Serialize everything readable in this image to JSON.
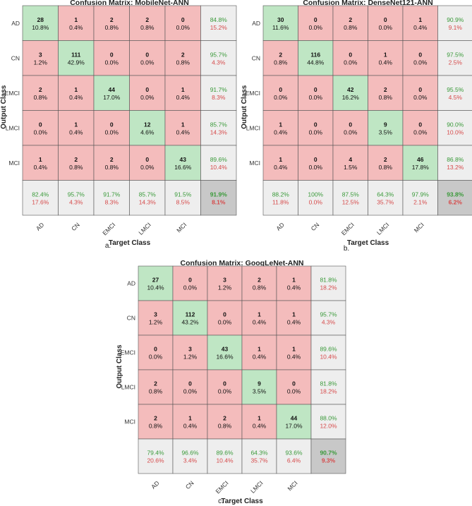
{
  "chart_data": [
    {
      "type": "heatmap",
      "title": "Confusion Matrix: MobileNet-ANN",
      "xlabel": "Target Class",
      "ylabel": "Output Class",
      "panel_label": "a.",
      "classes": [
        "AD",
        "CN",
        "EMCI",
        "LMCI",
        "MCI"
      ],
      "matrix": [
        [
          28,
          1,
          2,
          2,
          0
        ],
        [
          3,
          111,
          0,
          0,
          2
        ],
        [
          2,
          1,
          44,
          0,
          1
        ],
        [
          0,
          1,
          0,
          12,
          1
        ],
        [
          1,
          2,
          2,
          0,
          43
        ]
      ],
      "cell_percents": [
        [
          "10.8%",
          "0.4%",
          "0.8%",
          "0.8%",
          "0.0%"
        ],
        [
          "1.2%",
          "42.9%",
          "0.0%",
          "0.0%",
          "0.8%"
        ],
        [
          "0.8%",
          "0.4%",
          "17.0%",
          "0.0%",
          "0.4%"
        ],
        [
          "0.0%",
          "0.4%",
          "0.0%",
          "4.6%",
          "0.4%"
        ],
        [
          "0.4%",
          "0.8%",
          "0.8%",
          "0.0%",
          "16.6%"
        ]
      ],
      "row_summary": [
        [
          "84.8%",
          "15.2%"
        ],
        [
          "95.7%",
          "4.3%"
        ],
        [
          "91.7%",
          "8.3%"
        ],
        [
          "85.7%",
          "14.3%"
        ],
        [
          "89.6%",
          "10.4%"
        ]
      ],
      "col_summary": [
        [
          "82.4%",
          "17.6%"
        ],
        [
          "95.7%",
          "4.3%"
        ],
        [
          "91.7%",
          "8.3%"
        ],
        [
          "85.7%",
          "14.3%"
        ],
        [
          "91.5%",
          "8.5%"
        ]
      ],
      "overall": [
        "91.9%",
        "8.1%"
      ]
    },
    {
      "type": "heatmap",
      "title": "Confusion Matrix: DenseNet121-ANN",
      "xlabel": "Target Class",
      "ylabel": "Output Class",
      "panel_label": "b.",
      "classes": [
        "AD",
        "CN",
        "EMCI",
        "LMCI",
        "MCI"
      ],
      "matrix": [
        [
          30,
          0,
          2,
          0,
          1
        ],
        [
          2,
          116,
          0,
          1,
          0
        ],
        [
          0,
          0,
          42,
          2,
          0
        ],
        [
          1,
          0,
          0,
          9,
          0
        ],
        [
          1,
          0,
          4,
          2,
          46
        ]
      ],
      "cell_percents": [
        [
          "11.6%",
          "0.0%",
          "0.8%",
          "0.0%",
          "0.4%"
        ],
        [
          "0.8%",
          "44.8%",
          "0.0%",
          "0.4%",
          "0.0%"
        ],
        [
          "0.0%",
          "0.0%",
          "16.2%",
          "0.8%",
          "0.0%"
        ],
        [
          "0.4%",
          "0.0%",
          "0.0%",
          "3.5%",
          "0.0%"
        ],
        [
          "0.4%",
          "0.0%",
          "1.5%",
          "0.8%",
          "17.8%"
        ]
      ],
      "row_summary": [
        [
          "90.9%",
          "9.1%"
        ],
        [
          "97.5%",
          "2.5%"
        ],
        [
          "95.5%",
          "4.5%"
        ],
        [
          "90.0%",
          "10.0%"
        ],
        [
          "86.8%",
          "13.2%"
        ]
      ],
      "col_summary": [
        [
          "88.2%",
          "11.8%"
        ],
        [
          "100%",
          "0.0%"
        ],
        [
          "87.5%",
          "12.5%"
        ],
        [
          "64.3%",
          "35.7%"
        ],
        [
          "97.9%",
          "2.1%"
        ]
      ],
      "overall": [
        "93.8%",
        "6.2%"
      ]
    },
    {
      "type": "heatmap",
      "title": "Confusion Matrix: GoogLeNet-ANN",
      "xlabel": "Target Class",
      "ylabel": "Output Class",
      "panel_label": "c.",
      "classes": [
        "AD",
        "CN",
        "EMCI",
        "LMCI",
        "MCI"
      ],
      "matrix": [
        [
          27,
          0,
          3,
          2,
          1
        ],
        [
          3,
          112,
          0,
          1,
          1
        ],
        [
          0,
          3,
          43,
          1,
          1
        ],
        [
          2,
          0,
          0,
          9,
          0
        ],
        [
          2,
          1,
          2,
          1,
          44
        ]
      ],
      "cell_percents": [
        [
          "10.4%",
          "0.0%",
          "1.2%",
          "0.8%",
          "0.4%"
        ],
        [
          "1.2%",
          "43.2%",
          "0.0%",
          "0.4%",
          "0.4%"
        ],
        [
          "0.0%",
          "1.2%",
          "16.6%",
          "0.4%",
          "0.4%"
        ],
        [
          "0.8%",
          "0.0%",
          "0.0%",
          "3.5%",
          "0.0%"
        ],
        [
          "0.8%",
          "0.4%",
          "0.8%",
          "0.4%",
          "17.0%"
        ]
      ],
      "row_summary": [
        [
          "81.8%",
          "18.2%"
        ],
        [
          "95.7%",
          "4.3%"
        ],
        [
          "89.6%",
          "10.4%"
        ],
        [
          "81.8%",
          "18.2%"
        ],
        [
          "88.0%",
          "12.0%"
        ]
      ],
      "col_summary": [
        [
          "79.4%",
          "20.6%"
        ],
        [
          "96.6%",
          "3.4%"
        ],
        [
          "89.6%",
          "10.4%"
        ],
        [
          "64.3%",
          "35.7%"
        ],
        [
          "93.6%",
          "6.4%"
        ]
      ],
      "overall": [
        "90.7%",
        "9.3%"
      ]
    }
  ],
  "colors": {
    "diagonal": "#bfe6c4",
    "off_diagonal": "#f4bcbc",
    "summary": "#eeeeee",
    "overall": "#c8c8c8",
    "correct_text": "#3a9a3a",
    "error_text": "#d64a4a"
  }
}
